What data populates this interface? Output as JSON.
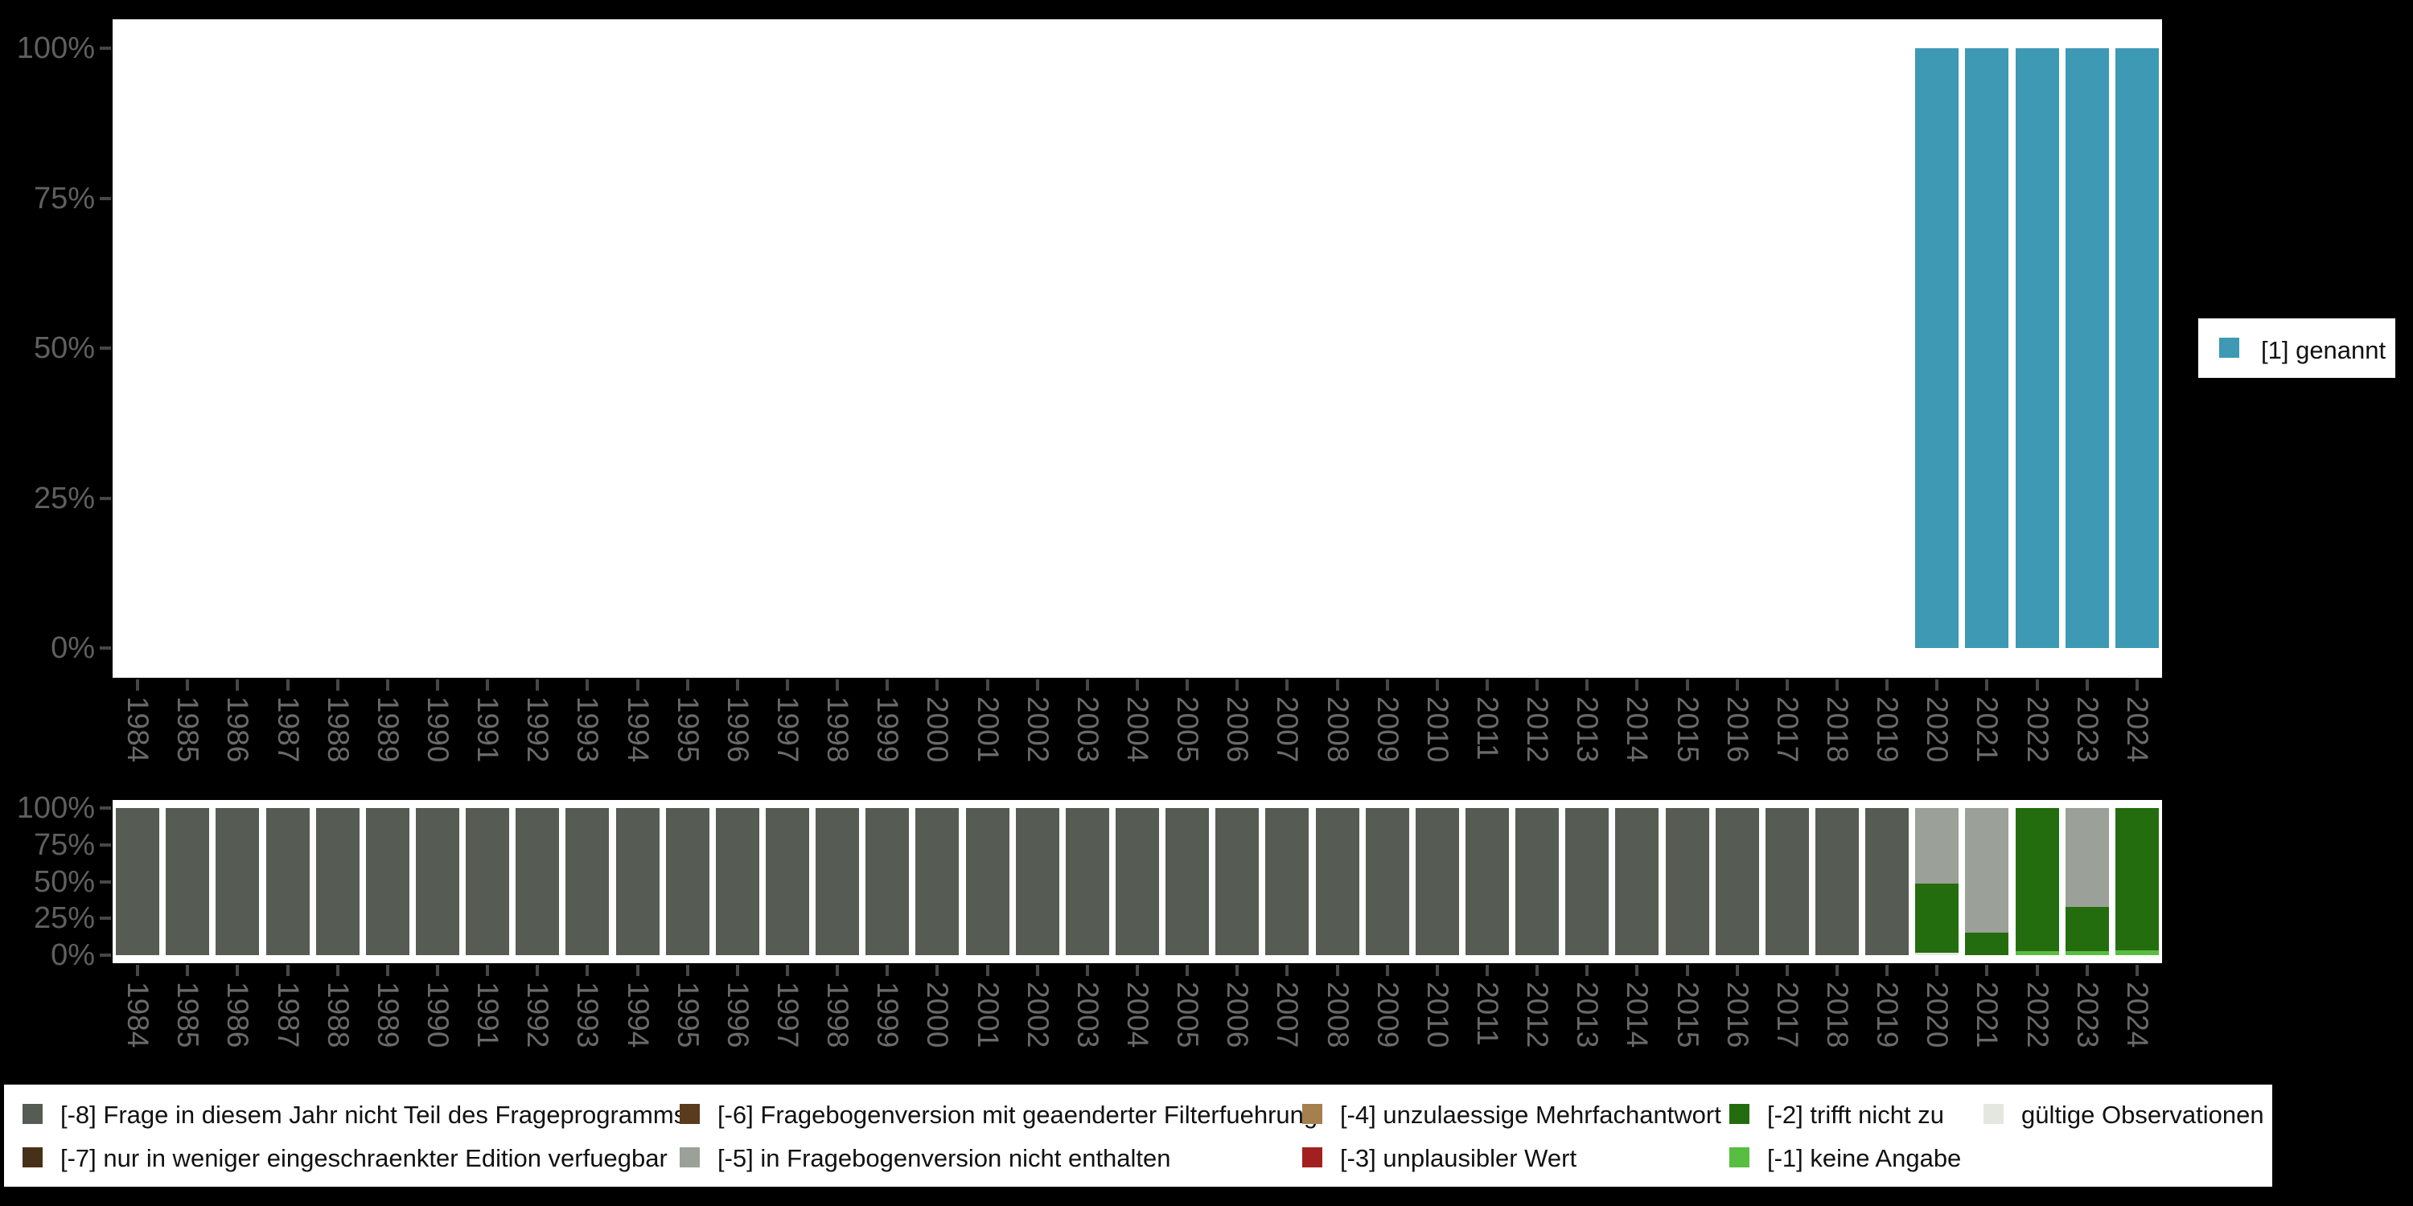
{
  "page": {
    "background": "#000000",
    "panel_background": "#ffffff"
  },
  "top_chart": {
    "y_tick_labels": [
      "100%",
      "75%",
      "50%",
      "25%",
      "0%"
    ],
    "legend": {
      "label": "[1] genannt",
      "color": "#3D99B4",
      "position": "right"
    }
  },
  "bottom_chart": {
    "y_tick_labels": [
      "100%",
      "75%",
      "50%",
      "25%",
      "0%"
    ]
  },
  "legend_bottom": {
    "items": [
      {
        "row": 0,
        "col": 0,
        "label": "[-8] Frage in diesem Jahr nicht Teil des Frageprogramms",
        "color": "#565B53"
      },
      {
        "row": 0,
        "col": 1,
        "label": "[-6] Fragebogenversion mit geaenderter Filterfuehrung",
        "color": "#5A3B1D"
      },
      {
        "row": 0,
        "col": 2,
        "label": "[-4] unzulaessige Mehrfachantwort",
        "color": "#A57F4E"
      },
      {
        "row": 0,
        "col": 3,
        "label": "[-2] trifft nicht zu",
        "color": "#246D0E"
      },
      {
        "row": 0,
        "col": 4,
        "label": "gültige Observationen",
        "color": "#E3E7E0"
      },
      {
        "row": 1,
        "col": 0,
        "label": "[-7] nur in weniger eingeschraenkter Edition verfuegbar",
        "color": "#47301A"
      },
      {
        "row": 1,
        "col": 1,
        "label": "[-5] in Fragebogenversion nicht enthalten",
        "color": "#9BA098"
      },
      {
        "row": 1,
        "col": 2,
        "label": "[-3] unplausibler Wert",
        "color": "#A32020"
      },
      {
        "row": 1,
        "col": 3,
        "label": "[-1] keine Angabe",
        "color": "#58BE41"
      }
    ]
  },
  "chart_data": [
    {
      "type": "bar",
      "stacked": true,
      "title": "",
      "xlabel": "",
      "ylabel": "",
      "ylim": [
        0,
        100
      ],
      "yticks_percent": [
        0,
        25,
        50,
        75,
        100
      ],
      "grid": false,
      "legend_position": "right",
      "categories": [
        "1984",
        "1985",
        "1986",
        "1987",
        "1988",
        "1989",
        "1990",
        "1991",
        "1992",
        "1993",
        "1994",
        "1995",
        "1996",
        "1997",
        "1998",
        "1999",
        "2000",
        "2001",
        "2002",
        "2003",
        "2004",
        "2005",
        "2006",
        "2007",
        "2008",
        "2009",
        "2010",
        "2011",
        "2012",
        "2013",
        "2014",
        "2015",
        "2016",
        "2017",
        "2018",
        "2019",
        "2020",
        "2021",
        "2022",
        "2023",
        "2024"
      ],
      "series": [
        {
          "name": "[1] genannt",
          "color": "#3D99B4",
          "values": [
            0,
            0,
            0,
            0,
            0,
            0,
            0,
            0,
            0,
            0,
            0,
            0,
            0,
            0,
            0,
            0,
            0,
            0,
            0,
            0,
            0,
            0,
            0,
            0,
            0,
            0,
            0,
            0,
            0,
            0,
            0,
            0,
            0,
            0,
            0,
            0,
            100,
            100,
            100,
            100,
            100
          ]
        }
      ]
    },
    {
      "type": "bar",
      "stacked": true,
      "stack_order": "bottom_to_top",
      "title": "",
      "xlabel": "",
      "ylabel": "",
      "ylim": [
        0,
        100
      ],
      "yticks_percent": [
        0,
        25,
        50,
        75,
        100
      ],
      "grid": false,
      "categories": [
        "1984",
        "1985",
        "1986",
        "1987",
        "1988",
        "1989",
        "1990",
        "1991",
        "1992",
        "1993",
        "1994",
        "1995",
        "1996",
        "1997",
        "1998",
        "1999",
        "2000",
        "2001",
        "2002",
        "2003",
        "2004",
        "2005",
        "2006",
        "2007",
        "2008",
        "2009",
        "2010",
        "2011",
        "2012",
        "2013",
        "2014",
        "2015",
        "2016",
        "2017",
        "2018",
        "2019",
        "2020",
        "2021",
        "2022",
        "2023",
        "2024"
      ],
      "series": [
        {
          "name": "gültige Observationen",
          "color": "#E3E7E0",
          "values": [
            0,
            0,
            0,
            0,
            0,
            0,
            0,
            0,
            0,
            0,
            0,
            0,
            0,
            0,
            0,
            0,
            0,
            0,
            0,
            0,
            0,
            0,
            0,
            0,
            0,
            0,
            0,
            0,
            0,
            0,
            0,
            0,
            0,
            0,
            0,
            0,
            1.5,
            0,
            0,
            0,
            0
          ]
        },
        {
          "name": "[-1] keine Angabe",
          "color": "#58BE41",
          "values": [
            0,
            0,
            0,
            0,
            0,
            0,
            0,
            0,
            0,
            0,
            0,
            0,
            0,
            0,
            0,
            0,
            0,
            0,
            0,
            0,
            0,
            0,
            0,
            0,
            0,
            0,
            0,
            0,
            0,
            0,
            0,
            0,
            0,
            0,
            0,
            0,
            0,
            0,
            2.7,
            2.7,
            3.2
          ]
        },
        {
          "name": "[-2] trifft nicht zu",
          "color": "#246D0E",
          "values": [
            0,
            0,
            0,
            0,
            0,
            0,
            0,
            0,
            0,
            0,
            0,
            0,
            0,
            0,
            0,
            0,
            0,
            0,
            0,
            0,
            0,
            0,
            0,
            0,
            0,
            0,
            0,
            0,
            0,
            0,
            0,
            0,
            0,
            0,
            0,
            0,
            47.1,
            15.1,
            97.3,
            30.3,
            96.8
          ]
        },
        {
          "name": "[-5] in Fragebogenversion nicht enthalten",
          "color": "#9BA098",
          "values": [
            0,
            0,
            0,
            0,
            0,
            0,
            0,
            0,
            0,
            0,
            0,
            0,
            0,
            0,
            0,
            0,
            0,
            0,
            0,
            0,
            0,
            0,
            0,
            0,
            0,
            0,
            0,
            0,
            0,
            0,
            0,
            0,
            0,
            0,
            0,
            0,
            51.4,
            84.9,
            0,
            67,
            0
          ]
        },
        {
          "name": "[-8] Frage in diesem Jahr nicht Teil des Frageprogramms",
          "color": "#565B53",
          "values": [
            100,
            100,
            100,
            100,
            100,
            100,
            100,
            100,
            100,
            100,
            100,
            100,
            100,
            100,
            100,
            100,
            100,
            100,
            100,
            100,
            100,
            100,
            100,
            100,
            100,
            100,
            100,
            100,
            100,
            100,
            100,
            100,
            100,
            100,
            100,
            100,
            0,
            0,
            0,
            0,
            0
          ]
        }
      ]
    }
  ]
}
